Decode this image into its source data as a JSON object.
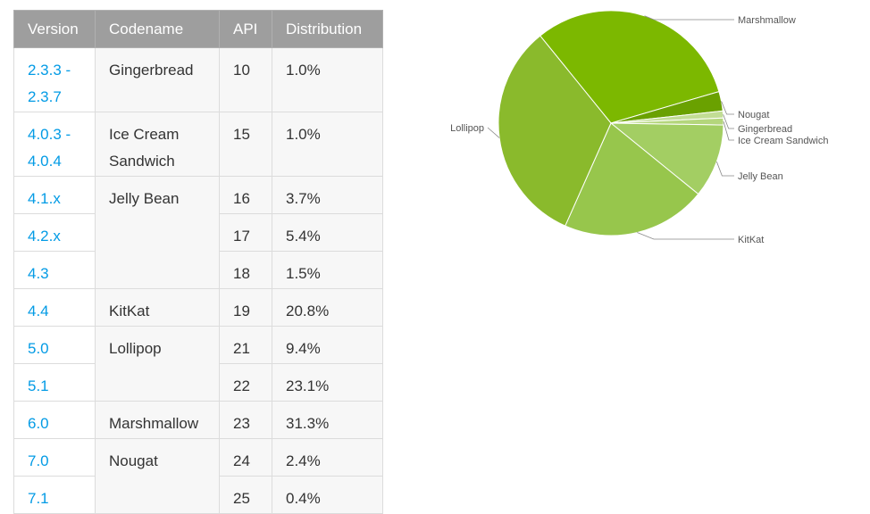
{
  "table": {
    "headers": {
      "version": "Version",
      "codename": "Codename",
      "api": "API",
      "distribution": "Distribution"
    },
    "rows": [
      {
        "version": [
          "2.3.3 -",
          "2.3.7"
        ],
        "codename": "Gingerbread",
        "api": "10",
        "distribution": "1.0%"
      },
      {
        "version": [
          "4.0.3 -",
          "4.0.4"
        ],
        "codename": "Ice Cream Sandwich",
        "api": "15",
        "distribution": "1.0%"
      },
      {
        "version": [
          "4.1.x"
        ],
        "codename": "Jelly Bean",
        "api": "16",
        "distribution": "3.7%"
      },
      {
        "version": [
          "4.2.x"
        ],
        "codename": "",
        "api": "17",
        "distribution": "5.4%"
      },
      {
        "version": [
          "4.3"
        ],
        "codename": "",
        "api": "18",
        "distribution": "1.5%"
      },
      {
        "version": [
          "4.4"
        ],
        "codename": "KitKat",
        "api": "19",
        "distribution": "20.8%"
      },
      {
        "version": [
          "5.0"
        ],
        "codename": "Lollipop",
        "api": "21",
        "distribution": "9.4%"
      },
      {
        "version": [
          "5.1"
        ],
        "codename": "",
        "api": "22",
        "distribution": "23.1%"
      },
      {
        "version": [
          "6.0"
        ],
        "codename": "Marshmallow",
        "api": "23",
        "distribution": "31.3%"
      },
      {
        "version": [
          "7.0"
        ],
        "codename": "Nougat",
        "api": "24",
        "distribution": "2.4%"
      },
      {
        "version": [
          "7.1"
        ],
        "codename": "",
        "api": "25",
        "distribution": "0.4%"
      }
    ]
  },
  "chart_data": {
    "type": "pie",
    "title": "",
    "slices": [
      {
        "label": "Marshmallow",
        "value": 31.3,
        "color": "#7cb800"
      },
      {
        "label": "Nougat",
        "value": 2.8,
        "color": "#6aa100"
      },
      {
        "label": "Gingerbread",
        "value": 1.0,
        "color": "#c2dd95"
      },
      {
        "label": "Ice Cream Sandwich",
        "value": 1.0,
        "color": "#b4d67c"
      },
      {
        "label": "Jelly Bean",
        "value": 10.6,
        "color": "#a3ce63"
      },
      {
        "label": "KitKat",
        "value": 20.8,
        "color": "#97c64c"
      },
      {
        "label": "Lollipop",
        "value": 32.5,
        "color": "#8aba2c"
      }
    ]
  },
  "colors": {
    "header_bg": "#9e9e9e",
    "version_link": "#039be5"
  }
}
